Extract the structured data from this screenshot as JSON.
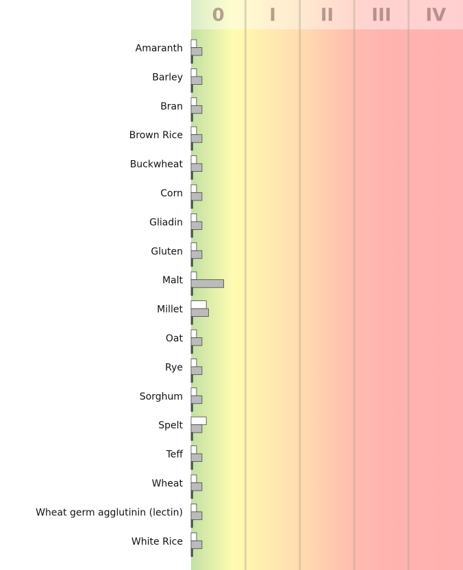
{
  "chart_data": {
    "type": "bar",
    "orientation": "horizontal",
    "classes": [
      "0",
      "I",
      "II",
      "III",
      "IV"
    ],
    "categories": [
      "Amaranth",
      "Barley",
      "Bran",
      "Brown Rice",
      "Buckwheat",
      "Corn",
      "Gliadin",
      "Gluten",
      "Malt",
      "Millet",
      "Oat",
      "Rye",
      "Sorghum",
      "Spelt",
      "Teff",
      "Wheat",
      "Wheat germ agglutinin (lectin)",
      "White Rice"
    ],
    "series": [
      {
        "color": "#ffffff",
        "values": [
          0.1,
          0.1,
          0.1,
          0.1,
          0.1,
          0.1,
          0.1,
          0.1,
          0.1,
          0.28,
          0.1,
          0.1,
          0.1,
          0.28,
          0.1,
          0.1,
          0.1,
          0.1
        ]
      },
      {
        "color": "#bbbbbb",
        "values": [
          0.2,
          0.2,
          0.2,
          0.2,
          0.2,
          0.2,
          0.2,
          0.2,
          0.6,
          0.32,
          0.2,
          0.2,
          0.2,
          0.2,
          0.2,
          0.2,
          0.2,
          0.2
        ]
      },
      {
        "color": "#555555",
        "values": [
          0.03,
          0.03,
          0.03,
          0.03,
          0.03,
          0.03,
          0.03,
          0.03,
          0.03,
          0.03,
          0.03,
          0.03,
          0.03,
          0.03,
          0.03,
          0.03,
          0.03,
          0.03
        ]
      }
    ],
    "xlim": [
      0,
      5
    ],
    "xticks": [
      1,
      2,
      3,
      4
    ],
    "grid": true
  }
}
